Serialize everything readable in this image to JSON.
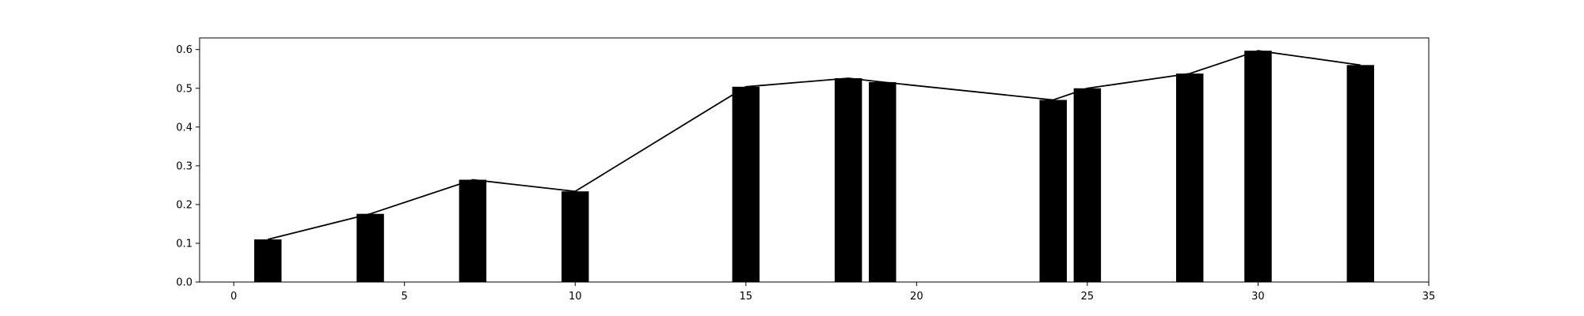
{
  "chart_data": {
    "type": "bar",
    "title": "",
    "xlabel": "",
    "ylabel": "",
    "xlim": [
      -1,
      35
    ],
    "ylim": [
      0,
      0.63
    ],
    "grid": false,
    "bar_width": 0.8,
    "bar_color": "#000000",
    "line_color": "#000000",
    "x": [
      1,
      4,
      7,
      10,
      15,
      18,
      19,
      24,
      25,
      28,
      30,
      33
    ],
    "values": [
      0.11,
      0.176,
      0.264,
      0.234,
      0.504,
      0.526,
      0.516,
      0.47,
      0.5,
      0.538,
      0.597,
      0.56
    ],
    "x_ticks": [
      0,
      5,
      10,
      15,
      20,
      25,
      30,
      35
    ],
    "y_ticks": [
      0.0,
      0.1,
      0.2,
      0.3,
      0.4,
      0.5,
      0.6
    ],
    "x_tick_labels": [
      "0",
      "5",
      "10",
      "15",
      "20",
      "25",
      "30",
      "35"
    ],
    "y_tick_labels": [
      "0.0",
      "0.1",
      "0.2",
      "0.3",
      "0.4",
      "0.5",
      "0.6"
    ]
  }
}
